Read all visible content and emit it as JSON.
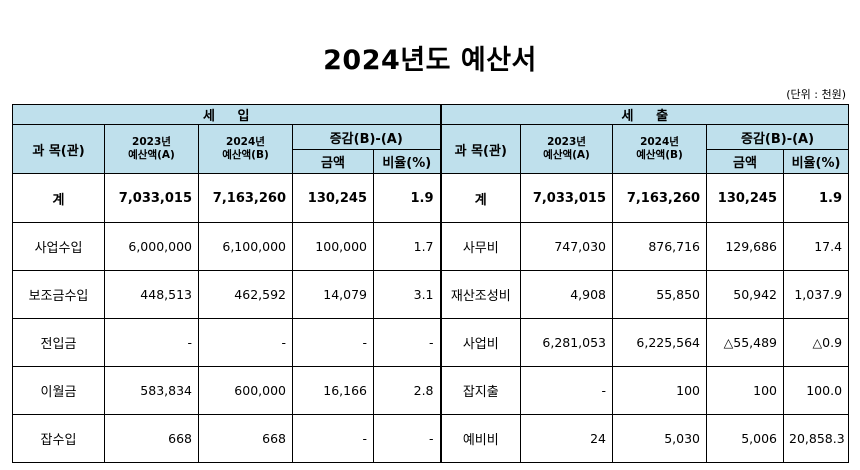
{
  "title": "2024년도 예산서",
  "unit": "(단위 : 천원)",
  "header": {
    "revenue": "세     입",
    "expense": "세     출",
    "subject": "과 목(관)",
    "budget_2023_year": "2023년",
    "budget_2023_label": "예산액(A)",
    "budget_2024_year": "2024년",
    "budget_2024_label": "예산액(B)",
    "change": "증감(B)-(A)",
    "amount": "금액",
    "ratio": "비율(%)"
  },
  "revenue_rows": [
    {
      "subject": "계",
      "a2023": "7,033,015",
      "b2024": "7,163,260",
      "amount": "130,245",
      "ratio": "1.9"
    },
    {
      "subject": "사업수입",
      "a2023": "6,000,000",
      "b2024": "6,100,000",
      "amount": "100,000",
      "ratio": "1.7"
    },
    {
      "subject": "보조금수입",
      "a2023": "448,513",
      "b2024": "462,592",
      "amount": "14,079",
      "ratio": "3.1"
    },
    {
      "subject": "전입금",
      "a2023": "-",
      "b2024": "-",
      "amount": "-",
      "ratio": "-"
    },
    {
      "subject": "이월금",
      "a2023": "583,834",
      "b2024": "600,000",
      "amount": "16,166",
      "ratio": "2.8"
    },
    {
      "subject": "잡수입",
      "a2023": "668",
      "b2024": "668",
      "amount": "-",
      "ratio": "-"
    }
  ],
  "expense_rows": [
    {
      "subject": "계",
      "a2023": "7,033,015",
      "b2024": "7,163,260",
      "amount": "130,245",
      "ratio": "1.9"
    },
    {
      "subject": "사무비",
      "a2023": "747,030",
      "b2024": "876,716",
      "amount": "129,686",
      "ratio": "17.4"
    },
    {
      "subject": "재산조성비",
      "a2023": "4,908",
      "b2024": "55,850",
      "amount": "50,942",
      "ratio": "1,037.9"
    },
    {
      "subject": "사업비",
      "a2023": "6,281,053",
      "b2024": "6,225,564",
      "amount": "△55,489",
      "ratio": "△0.9"
    },
    {
      "subject": "잡지출",
      "a2023": "-",
      "b2024": "100",
      "amount": "100",
      "ratio": "100.0"
    },
    {
      "subject": "예비비",
      "a2023": "24",
      "b2024": "5,030",
      "amount": "5,006",
      "ratio": "20,858.3"
    }
  ]
}
